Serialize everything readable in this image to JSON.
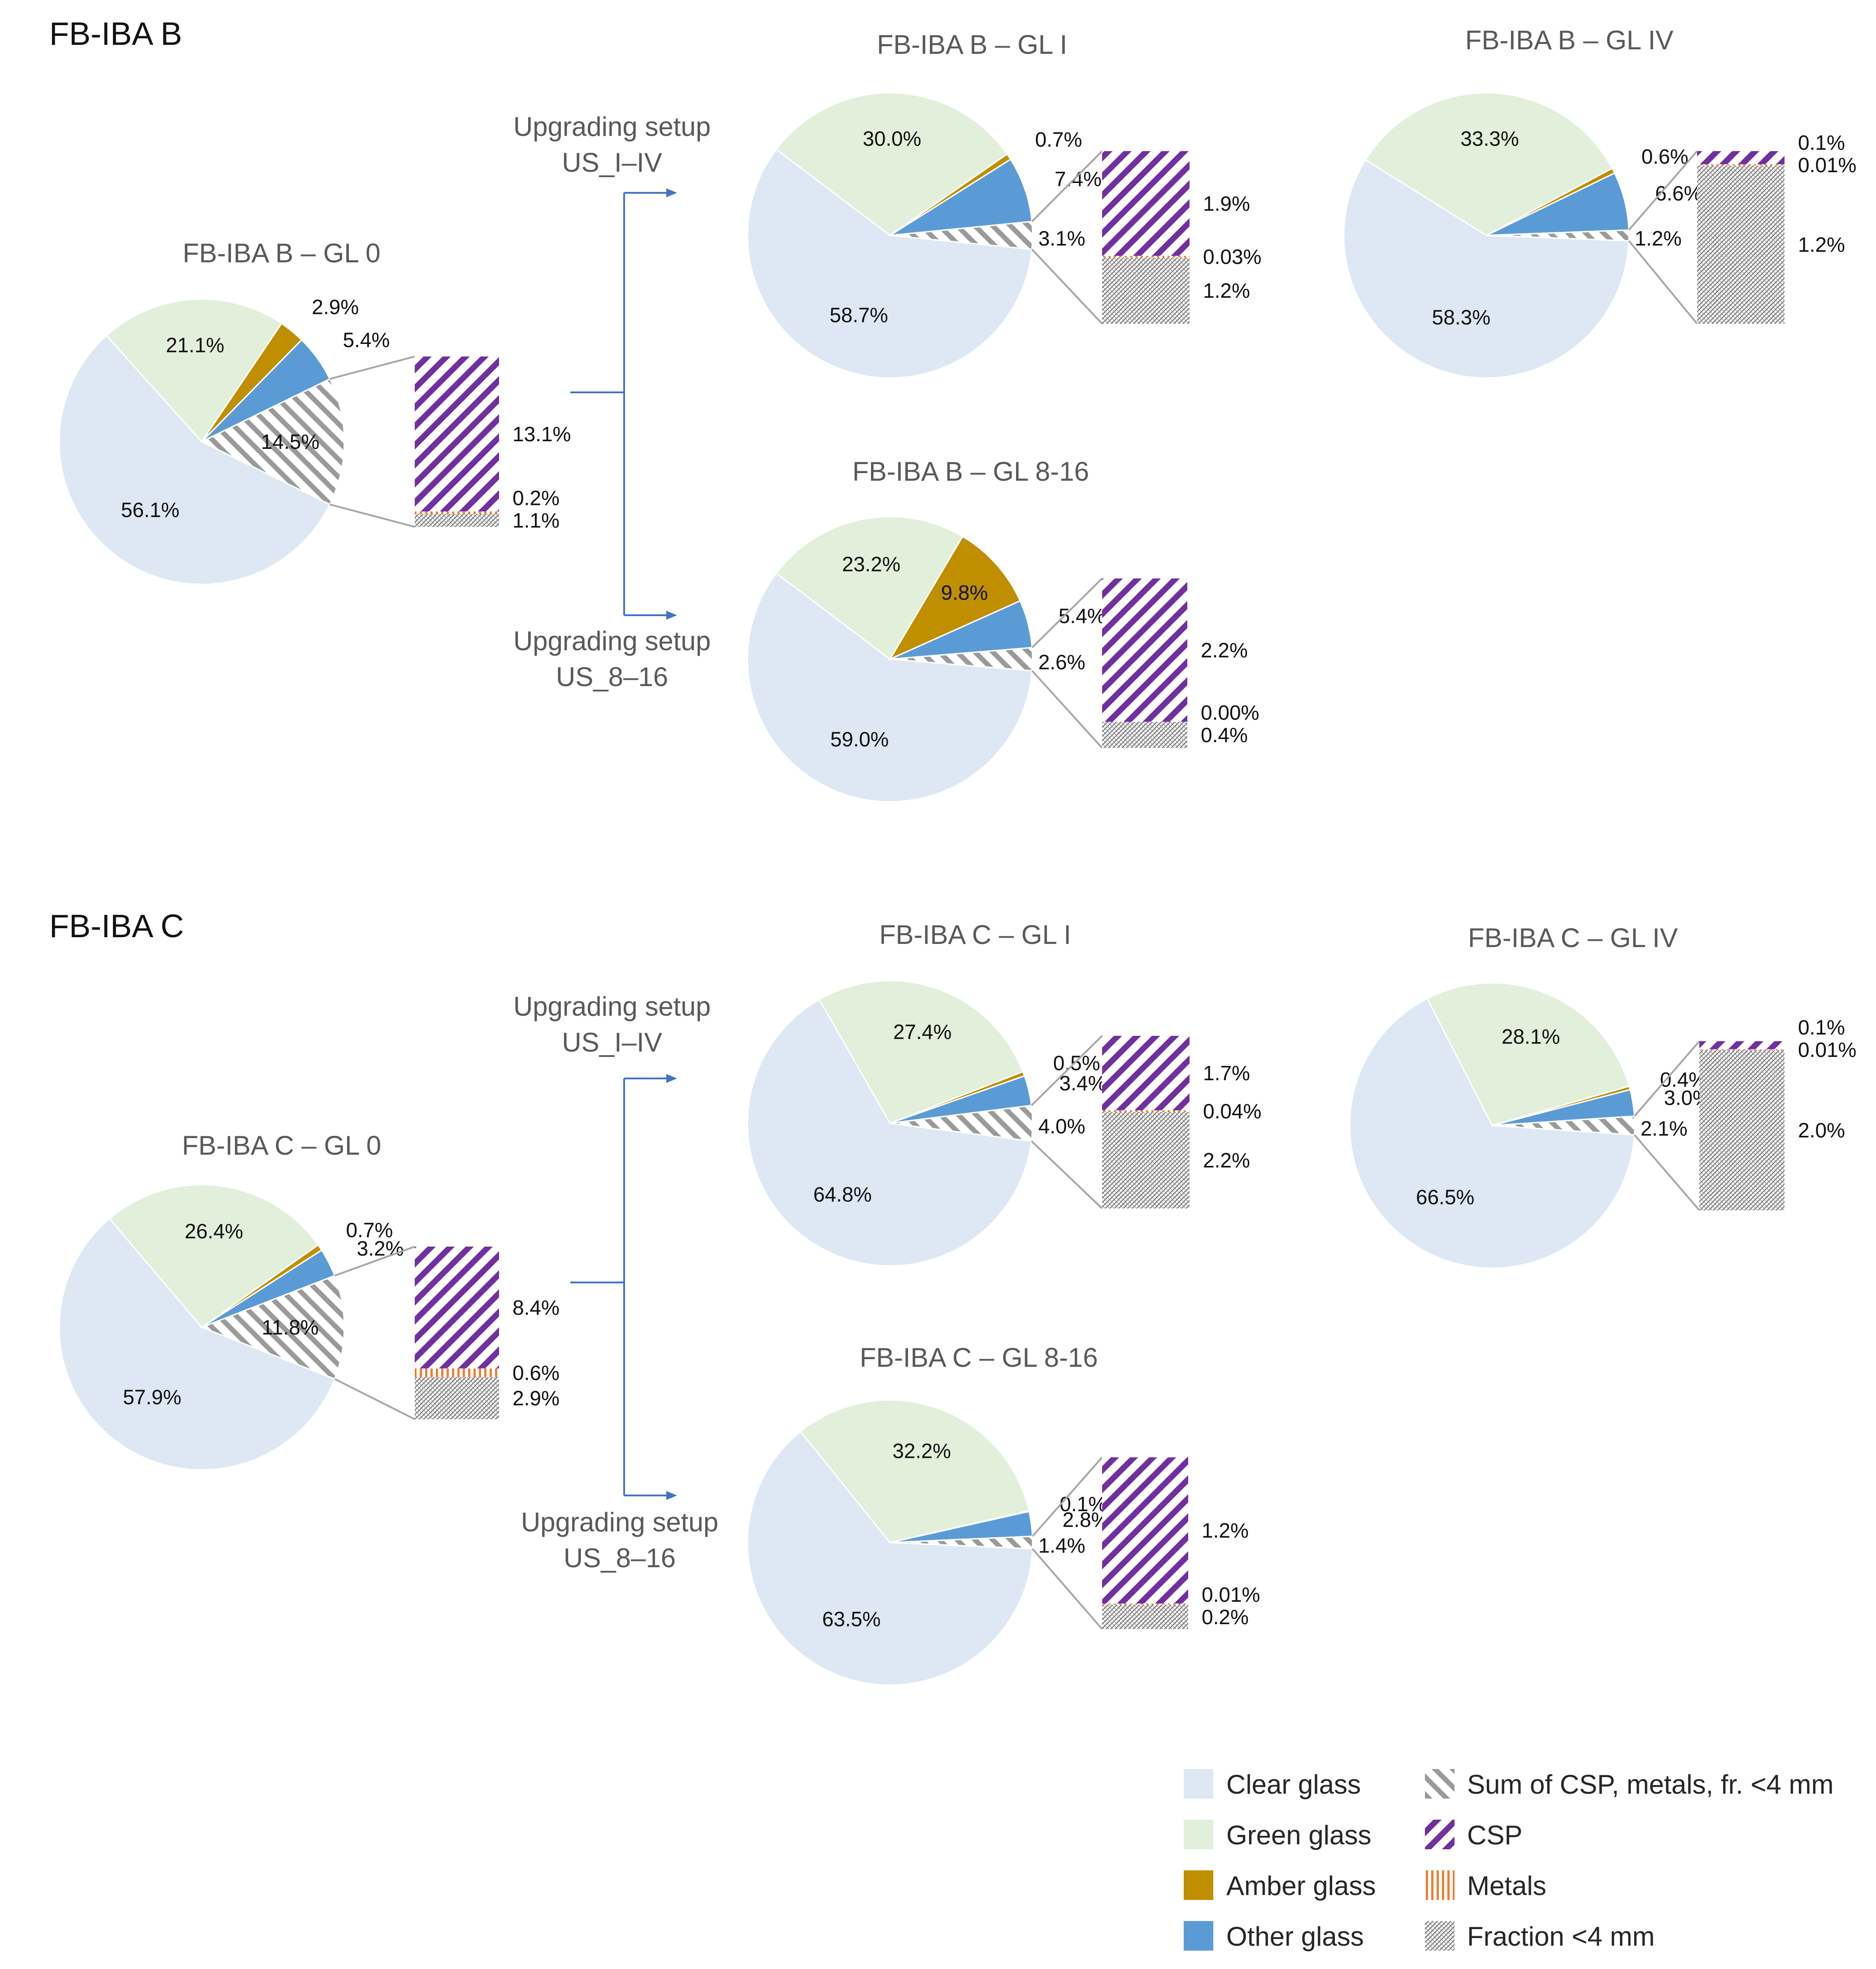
{
  "sections": [
    {
      "title": "FB-IBA B"
    },
    {
      "title": "FB-IBA C"
    }
  ],
  "upgrading_labels": [
    {
      "line1": "Upgrading setup",
      "line2": "US_I–IV"
    },
    {
      "line1": "Upgrading setup",
      "line2": "US_8–16"
    },
    {
      "line1": "Upgrading setup",
      "line2": "US_I–IV"
    },
    {
      "line1": "Upgrading setup",
      "line2": "US_8–16"
    }
  ],
  "colors": {
    "clear": "#dde8f4",
    "green": "#e2efda",
    "amber": "#bf8f00",
    "other": "#5b9bd5",
    "sum_stripe": "#9a9a9a",
    "csp": "#7030a0",
    "metals": "#ed7d31",
    "fraction": "#7f7f7f",
    "connector": "#a6a6a6",
    "arrow": "#4472c4"
  },
  "chart_data": [
    {
      "type": "pie",
      "title": "FB-IBA B – GL 0",
      "categories": [
        "Clear glass",
        "Green glass",
        "Amber glass",
        "Other glass",
        "Sum of CSP, metals, fr. <4 mm"
      ],
      "values": [
        56.1,
        21.1,
        2.9,
        5.4,
        14.5
      ],
      "labels": [
        "56.1%",
        "21.1%",
        "2.9%",
        "5.4%",
        "14.5%"
      ],
      "breakdown": {
        "categories": [
          "CSP",
          "Metals",
          "Fraction <4 mm"
        ],
        "values": [
          13.1,
          0.2,
          1.1
        ],
        "labels": [
          "13.1%",
          "0.2%",
          "1.1%"
        ]
      }
    },
    {
      "type": "pie",
      "title": "FB-IBA B – GL I",
      "categories": [
        "Clear glass",
        "Green glass",
        "Amber glass",
        "Other glass",
        "Sum of CSP, metals, fr. <4 mm"
      ],
      "values": [
        58.7,
        30.0,
        0.7,
        7.4,
        3.1
      ],
      "labels": [
        "58.7%",
        "30.0%",
        "0.7%",
        "7.4%",
        "3.1%"
      ],
      "breakdown": {
        "categories": [
          "CSP",
          "Metals",
          "Fraction <4 mm"
        ],
        "values": [
          1.9,
          0.03,
          1.2
        ],
        "labels": [
          "1.9%",
          "0.03%",
          "1.2%"
        ]
      }
    },
    {
      "type": "pie",
      "title": "FB-IBA B – GL IV",
      "categories": [
        "Clear glass",
        "Green glass",
        "Amber glass",
        "Other glass",
        "Sum of CSP, metals, fr. <4 mm"
      ],
      "values": [
        58.3,
        33.3,
        0.6,
        6.6,
        1.2
      ],
      "labels": [
        "58.3%",
        "33.3%",
        "0.6%",
        "6.6%",
        "1.2%"
      ],
      "breakdown": {
        "categories": [
          "CSP",
          "Metals",
          "Fraction <4 mm"
        ],
        "values": [
          0.1,
          0.01,
          1.2
        ],
        "labels": [
          "0.1%",
          "0.01%",
          "1.2%"
        ]
      }
    },
    {
      "type": "pie",
      "title": "FB-IBA B – GL 8-16",
      "categories": [
        "Clear glass",
        "Green glass",
        "Amber glass",
        "Other glass",
        "Sum of CSP, metals, fr. <4 mm"
      ],
      "values": [
        59.0,
        23.2,
        9.8,
        5.4,
        2.6
      ],
      "labels": [
        "59.0%",
        "23.2%",
        "9.8%",
        "5.4%",
        "2.6%"
      ],
      "breakdown": {
        "categories": [
          "CSP",
          "Metals",
          "Fraction <4 mm"
        ],
        "values": [
          2.2,
          0.0,
          0.4
        ],
        "labels": [
          "2.2%",
          "0.00%",
          "0.4%"
        ]
      }
    },
    {
      "type": "pie",
      "title": "FB-IBA C – GL 0",
      "categories": [
        "Clear glass",
        "Green glass",
        "Amber glass",
        "Other glass",
        "Sum of CSP, metals, fr. <4 mm"
      ],
      "values": [
        57.9,
        26.4,
        0.7,
        3.2,
        11.8
      ],
      "labels": [
        "57.9%",
        "26.4%",
        "0.7%",
        "3.2%",
        "11.8%"
      ],
      "breakdown": {
        "categories": [
          "CSP",
          "Metals",
          "Fraction <4 mm"
        ],
        "values": [
          8.4,
          0.6,
          2.9
        ],
        "labels": [
          "8.4%",
          "0.6%",
          "2.9%"
        ]
      }
    },
    {
      "type": "pie",
      "title": "FB-IBA C – GL I",
      "categories": [
        "Clear glass",
        "Green glass",
        "Amber glass",
        "Other glass",
        "Sum of CSP, metals, fr. <4 mm"
      ],
      "values": [
        64.8,
        27.4,
        0.5,
        3.4,
        4.0
      ],
      "labels": [
        "64.8%",
        "27.4%",
        "0.5%",
        "3.4%",
        "4.0%"
      ],
      "breakdown": {
        "categories": [
          "CSP",
          "Metals",
          "Fraction <4 mm"
        ],
        "values": [
          1.7,
          0.04,
          2.2
        ],
        "labels": [
          "1.7%",
          "0.04%",
          "2.2%"
        ]
      }
    },
    {
      "type": "pie",
      "title": "FB-IBA C – GL IV",
      "categories": [
        "Clear glass",
        "Green glass",
        "Amber glass",
        "Other glass",
        "Sum of CSP, metals, fr. <4 mm"
      ],
      "values": [
        66.5,
        28.1,
        0.4,
        3.0,
        2.1
      ],
      "labels": [
        "66.5%",
        "28.1%",
        "0.4%",
        "3.0%",
        "2.1%"
      ],
      "breakdown": {
        "categories": [
          "CSP",
          "Metals",
          "Fraction <4 mm"
        ],
        "values": [
          0.1,
          0.01,
          2.0
        ],
        "labels": [
          "0.1%",
          "0.01%",
          "2.0%"
        ]
      }
    },
    {
      "type": "pie",
      "title": "FB-IBA C – GL 8-16",
      "categories": [
        "Clear glass",
        "Green glass",
        "Amber glass",
        "Other glass",
        "Sum of CSP, metals, fr. <4 mm"
      ],
      "values": [
        63.5,
        32.2,
        0.1,
        2.8,
        1.4
      ],
      "labels": [
        "63.5%",
        "32.2%",
        "0.1%",
        "2.8%",
        "1.4%"
      ],
      "breakdown": {
        "categories": [
          "CSP",
          "Metals",
          "Fraction <4 mm"
        ],
        "values": [
          1.2,
          0.01,
          0.2
        ],
        "labels": [
          "1.2%",
          "0.01%",
          "0.2%"
        ]
      }
    }
  ],
  "legend": [
    {
      "key": "clear",
      "label": "Clear glass"
    },
    {
      "key": "green",
      "label": "Green glass"
    },
    {
      "key": "amber",
      "label": "Amber glass"
    },
    {
      "key": "other",
      "label": "Other glass"
    },
    {
      "key": "sum",
      "label": "Sum of CSP, metals, fr. <4 mm"
    },
    {
      "key": "csp",
      "label": "CSP"
    },
    {
      "key": "metals",
      "label": "Metals"
    },
    {
      "key": "fraction",
      "label": "Fraction <4 mm"
    }
  ]
}
